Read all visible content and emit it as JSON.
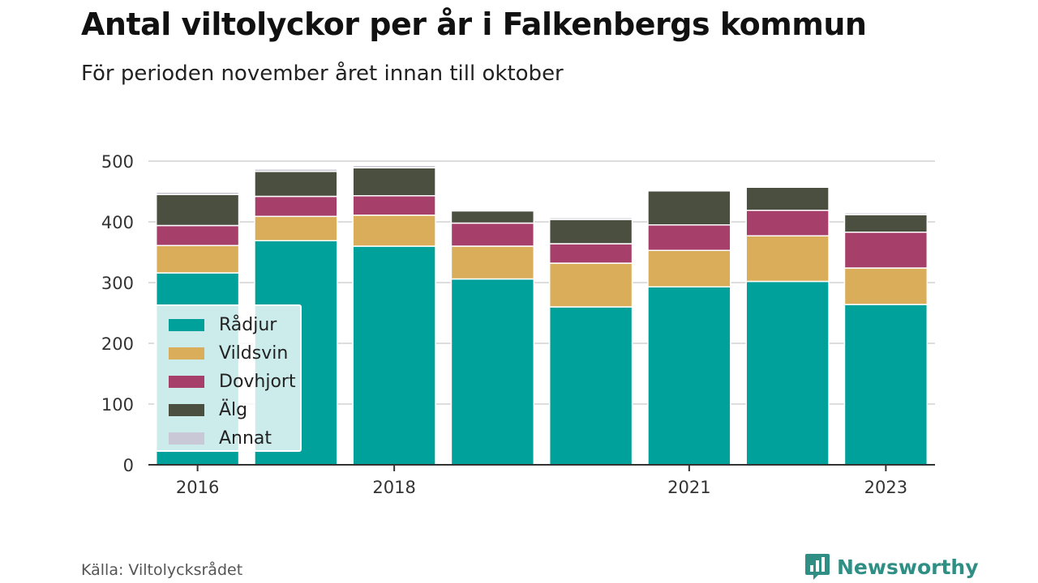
{
  "header": {
    "title": "Antal viltolyckor per år i Falkenbergs kommun",
    "subtitle": "För perioden november året innan till oktober"
  },
  "footer": {
    "source": "Källa: Viltolycksrådet",
    "brand": "Newsworthy",
    "brand_icon": "bar-chart-logo-icon"
  },
  "colors": {
    "Rådjur": "#00a19a",
    "Vildsvin": "#d9ad59",
    "Dovhjort": "#a63f69",
    "Älg": "#4b4f40",
    "Annat": "#c8c8d6",
    "brand": "#2f8f85",
    "grid": "#dddddd",
    "axis": "#333333"
  },
  "chart_data": {
    "type": "bar",
    "stacked": true,
    "x": [
      2016,
      2017,
      2018,
      2019,
      2020,
      2021,
      2022,
      2023
    ],
    "x_tick_labels": [
      "2016",
      "2018",
      "2021",
      "2023"
    ],
    "y_ticks": [
      0,
      100,
      200,
      300,
      400,
      500
    ],
    "ylim": [
      0,
      500
    ],
    "grid": true,
    "legend_position": "bottom-left inside plot",
    "series": [
      {
        "name": "Rådjur",
        "values": [
          316,
          369,
          360,
          306,
          260,
          293,
          302,
          264
        ]
      },
      {
        "name": "Vildsvin",
        "values": [
          45,
          40,
          51,
          54,
          72,
          60,
          75,
          60
        ]
      },
      {
        "name": "Dovhjort",
        "values": [
          33,
          33,
          32,
          38,
          32,
          42,
          42,
          59
        ]
      },
      {
        "name": "Älg",
        "values": [
          51,
          41,
          46,
          20,
          40,
          56,
          38,
          29
        ]
      },
      {
        "name": "Annat",
        "values": [
          4,
          4,
          4,
          0,
          3,
          0,
          2,
          3
        ]
      }
    ]
  }
}
